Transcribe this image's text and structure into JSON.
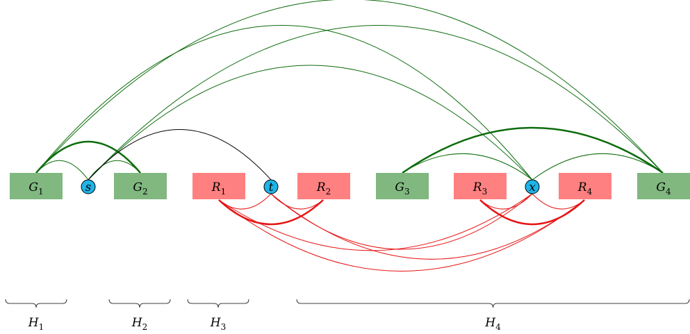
{
  "colors": {
    "green_box": "#80b880",
    "red_box": "#ff8080",
    "vertex_fill": "#1fb4e8",
    "green_edge": "#0b6b0b",
    "red_edge": "#e61414",
    "black_edge": "#000000"
  },
  "boxes": [
    {
      "id": "G1",
      "main": "G",
      "sub": "1",
      "color": "green"
    },
    {
      "id": "G2",
      "main": "G",
      "sub": "2",
      "color": "green"
    },
    {
      "id": "R1",
      "main": "R",
      "sub": "1",
      "color": "red"
    },
    {
      "id": "R2",
      "main": "R",
      "sub": "2",
      "color": "red"
    },
    {
      "id": "G3",
      "main": "G",
      "sub": "3",
      "color": "green"
    },
    {
      "id": "R3",
      "main": "R",
      "sub": "3",
      "color": "red"
    },
    {
      "id": "R4",
      "main": "R",
      "sub": "4",
      "color": "red"
    },
    {
      "id": "G4",
      "main": "G",
      "sub": "4",
      "color": "green"
    }
  ],
  "vertices": [
    {
      "id": "s",
      "label": "s"
    },
    {
      "id": "t",
      "label": "t"
    },
    {
      "id": "x",
      "label": "x"
    }
  ],
  "braces": [
    {
      "id": "H1",
      "main": "H",
      "sub": "1"
    },
    {
      "id": "H2",
      "main": "H",
      "sub": "2"
    },
    {
      "id": "H3",
      "main": "H",
      "sub": "3"
    },
    {
      "id": "H4",
      "main": "H",
      "sub": "4"
    }
  ]
}
